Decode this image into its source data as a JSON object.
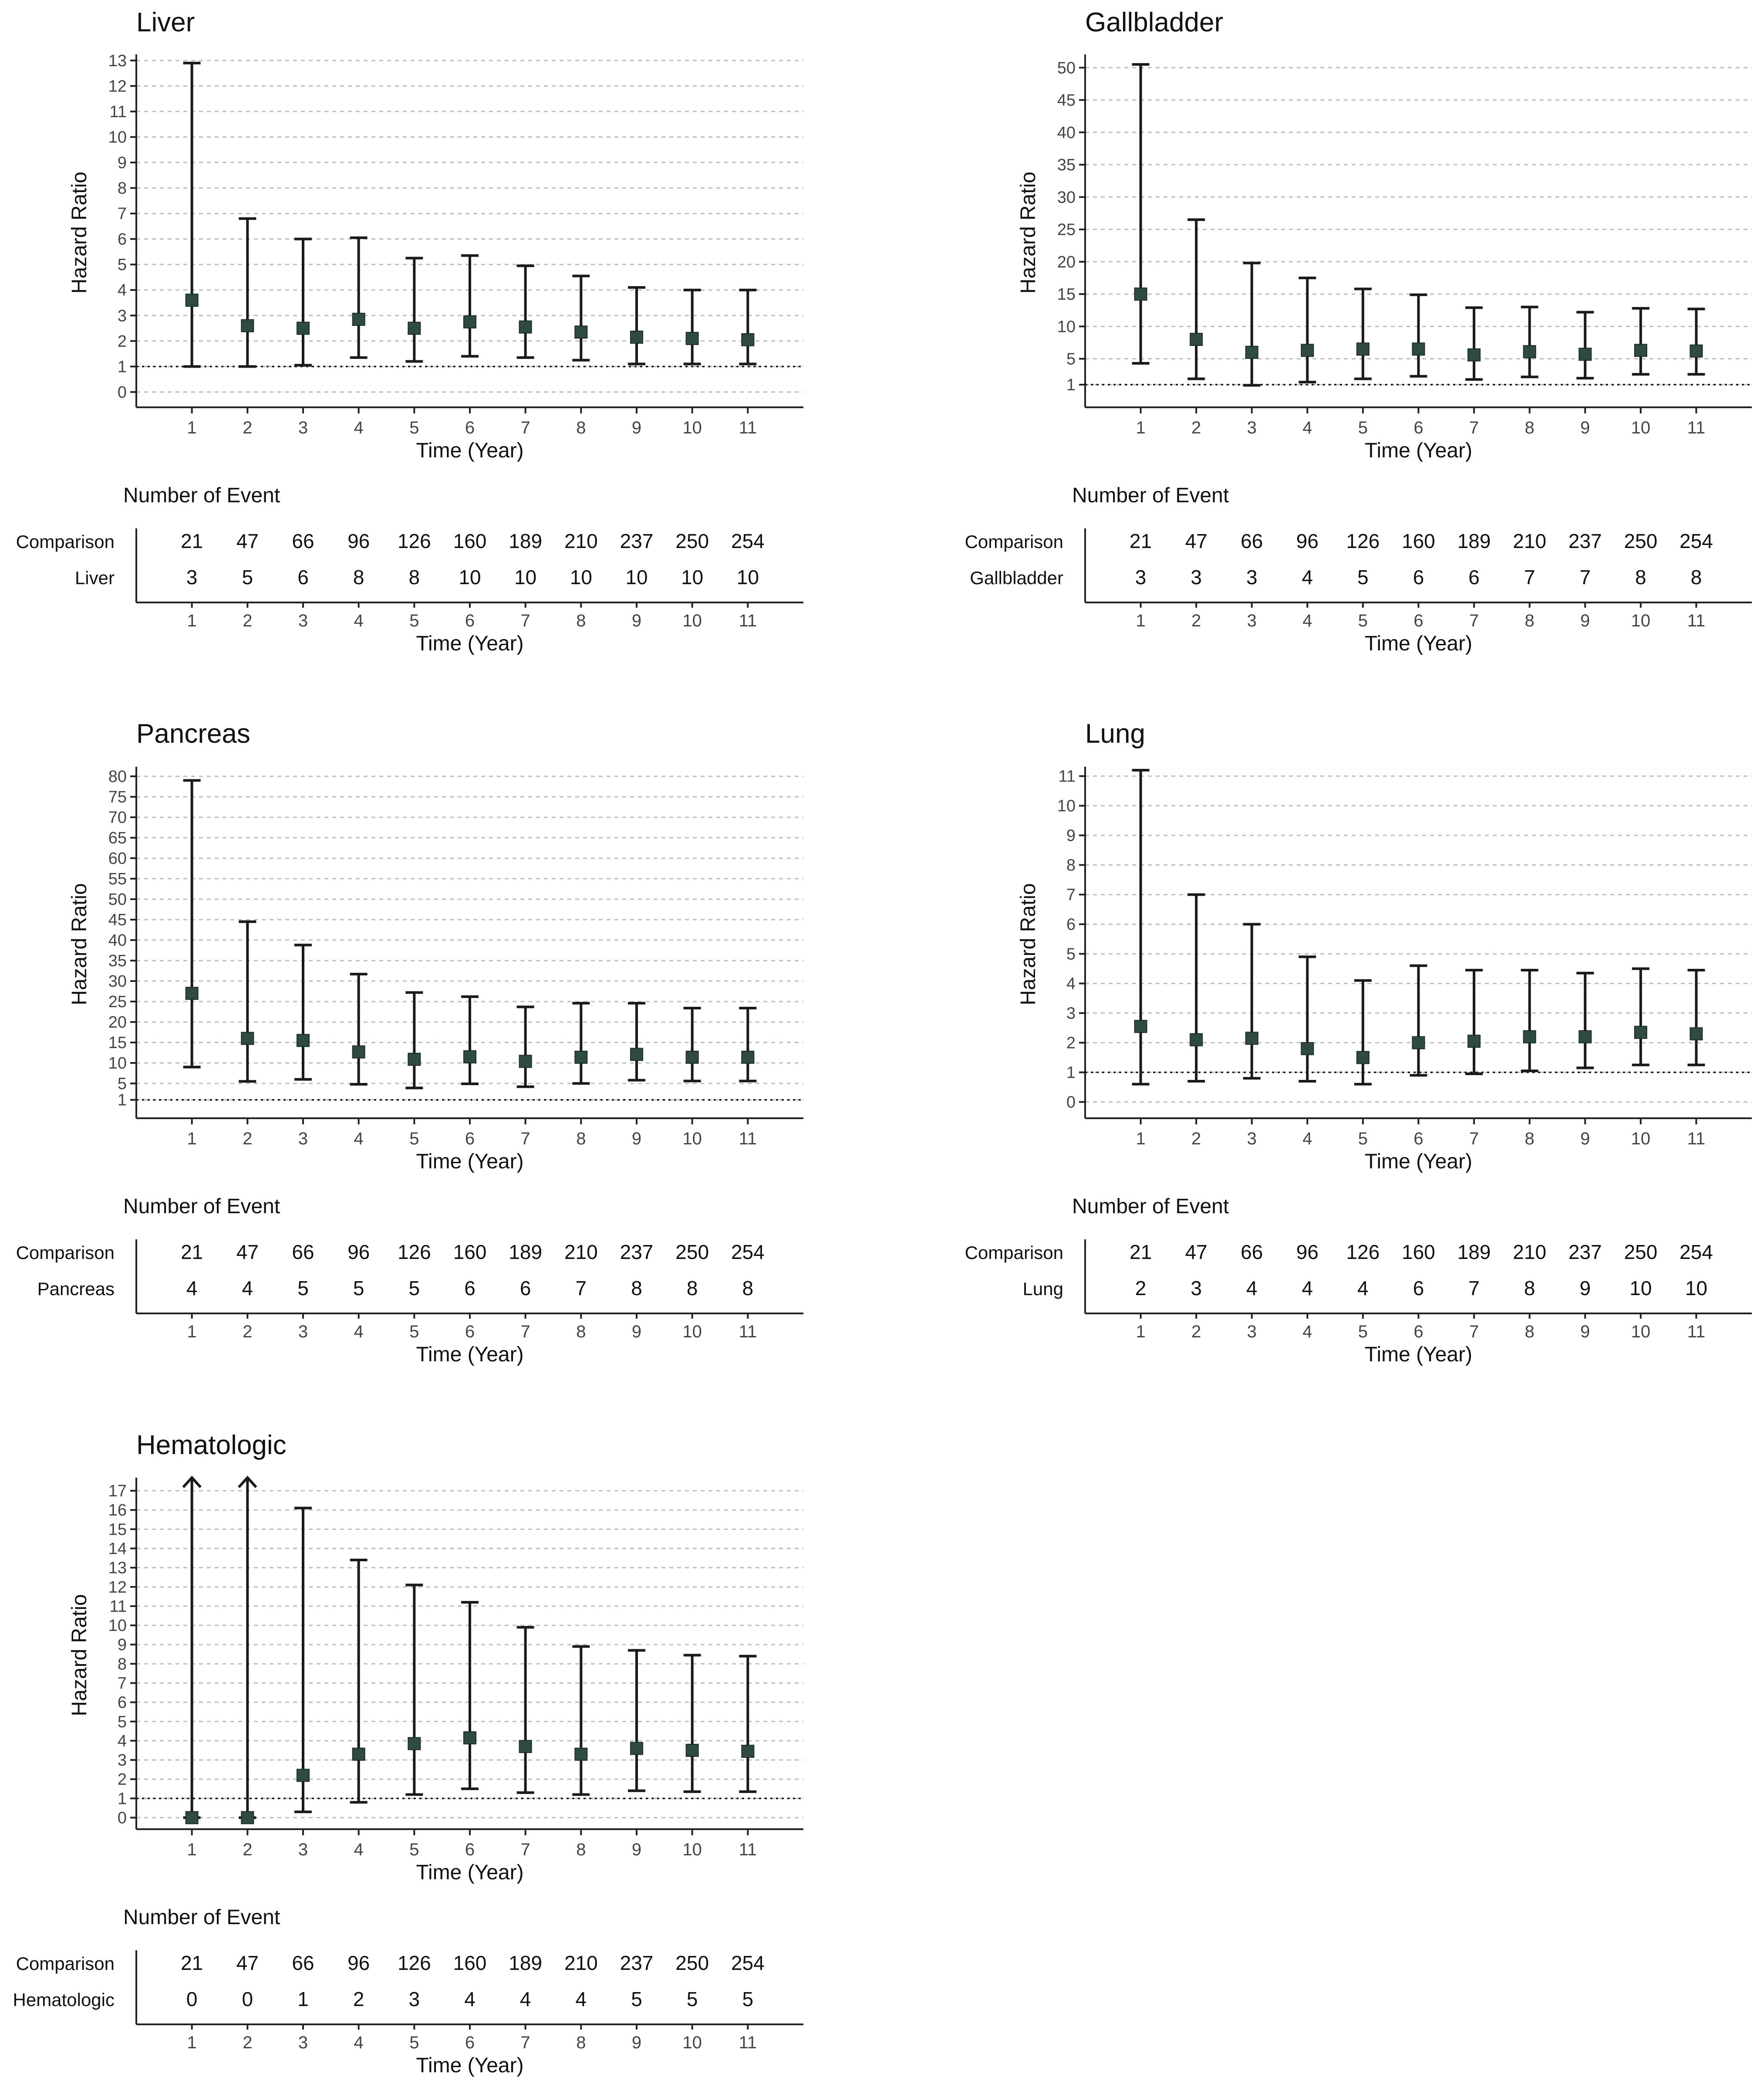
{
  "chart_data": [
    {
      "type": "errorbar",
      "title": "Liver",
      "xlabel": "Time (Year)",
      "ylabel": "Hazard Ratio",
      "yticks": [
        0,
        1,
        2,
        3,
        4,
        5,
        6,
        7,
        8,
        9,
        10,
        11,
        12,
        13
      ],
      "ylim": [
        -0.6,
        13.1
      ],
      "reference_line": 1,
      "x": [
        1,
        2,
        3,
        4,
        5,
        6,
        7,
        8,
        9,
        10,
        11
      ],
      "estimate": [
        3.6,
        2.6,
        2.5,
        2.85,
        2.5,
        2.75,
        2.55,
        2.35,
        2.15,
        2.1,
        2.05
      ],
      "lower": [
        1.0,
        1.0,
        1.05,
        1.35,
        1.2,
        1.4,
        1.35,
        1.25,
        1.1,
        1.1,
        1.1
      ],
      "upper": [
        12.9,
        6.8,
        6.0,
        6.05,
        5.25,
        5.35,
        4.95,
        4.55,
        4.1,
        4.0,
        4.0
      ],
      "table": {
        "header": "Number of Event",
        "rows": [
          {
            "label": "Comparison",
            "values": [
              "21",
              "47",
              "66",
              "96",
              "126",
              "160",
              "189",
              "210",
              "237",
              "250",
              "254"
            ]
          },
          {
            "label": "Liver",
            "values": [
              "3",
              "5",
              "6",
              "8",
              "8",
              "10",
              "10",
              "10",
              "10",
              "10",
              "10"
            ]
          }
        ],
        "xlabel": "Time (Year)"
      }
    },
    {
      "type": "errorbar",
      "title": "Gallbladder",
      "xlabel": "Time (Year)",
      "ylabel": "Hazard Ratio",
      "yticks": [
        1,
        5,
        10,
        15,
        20,
        25,
        30,
        35,
        40,
        45,
        50
      ],
      "ylim": [
        -2.5,
        51.5
      ],
      "reference_line": 1,
      "x": [
        1,
        2,
        3,
        4,
        5,
        6,
        7,
        8,
        9,
        10,
        11
      ],
      "estimate": [
        15,
        8,
        6,
        6.3,
        6.5,
        6.5,
        5.6,
        6.1,
        5.7,
        6.3,
        6.2
      ],
      "lower": [
        4.3,
        1.9,
        0.9,
        1.4,
        1.9,
        2.3,
        1.8,
        2.2,
        2.0,
        2.6,
        2.6
      ],
      "upper": [
        50.5,
        26.5,
        19.8,
        17.5,
        15.8,
        14.9,
        12.9,
        13.0,
        12.2,
        12.8,
        12.7
      ],
      "table": {
        "header": "Number of Event",
        "rows": [
          {
            "label": "Comparison",
            "values": [
              "21",
              "47",
              "66",
              "96",
              "126",
              "160",
              "189",
              "210",
              "237",
              "250",
              "254"
            ]
          },
          {
            "label": "Gallbladder",
            "values": [
              "3",
              "3",
              "3",
              "4",
              "5",
              "6",
              "6",
              "7",
              "7",
              "8",
              "8"
            ]
          }
        ],
        "xlabel": "Time (Year)"
      }
    },
    {
      "type": "errorbar",
      "title": "Pancreas",
      "xlabel": "Time (Year)",
      "ylabel": "Hazard Ratio",
      "yticks": [
        1,
        5,
        10,
        15,
        20,
        25,
        30,
        35,
        40,
        45,
        50,
        55,
        60,
        65,
        70,
        75,
        80
      ],
      "ylim": [
        -3.5,
        81.5
      ],
      "reference_line": 1,
      "x": [
        1,
        2,
        3,
        4,
        5,
        6,
        7,
        8,
        9,
        10,
        11
      ],
      "estimate": [
        27,
        16,
        15.5,
        12.7,
        10.9,
        11.5,
        10.4,
        11.4,
        12.1,
        11.4,
        11.4
      ],
      "lower": [
        9,
        5.5,
        6,
        4.8,
        3.9,
        4.9,
        4.2,
        5.0,
        5.8,
        5.6,
        5.6
      ],
      "upper": [
        79,
        44.5,
        38.8,
        31.7,
        27.2,
        26.2,
        23.7,
        24.6,
        24.6,
        23.4,
        23.4
      ],
      "table": {
        "header": "Number of Event",
        "rows": [
          {
            "label": "Comparison",
            "values": [
              "21",
              "47",
              "66",
              "96",
              "126",
              "160",
              "189",
              "210",
              "237",
              "250",
              "254"
            ]
          },
          {
            "label": "Pancreas",
            "values": [
              "4",
              "4",
              "5",
              "5",
              "5",
              "6",
              "6",
              "7",
              "8",
              "8",
              "8"
            ]
          }
        ],
        "xlabel": "Time (Year)"
      }
    },
    {
      "type": "errorbar",
      "title": "Lung",
      "xlabel": "Time (Year)",
      "ylabel": "Hazard Ratio",
      "yticks": [
        0,
        1,
        2,
        3,
        4,
        5,
        6,
        7,
        8,
        9,
        10,
        11
      ],
      "ylim": [
        -0.55,
        11.2
      ],
      "reference_line": 1,
      "x": [
        1,
        2,
        3,
        4,
        5,
        6,
        7,
        8,
        9,
        10,
        11
      ],
      "estimate": [
        2.55,
        2.1,
        2.15,
        1.8,
        1.5,
        2.0,
        2.05,
        2.2,
        2.2,
        2.35,
        2.3
      ],
      "lower": [
        0.6,
        0.7,
        0.8,
        0.7,
        0.6,
        0.9,
        0.95,
        1.05,
        1.15,
        1.25,
        1.25
      ],
      "upper": [
        11.2,
        7.0,
        6.0,
        4.9,
        4.1,
        4.6,
        4.45,
        4.45,
        4.35,
        4.5,
        4.45
      ],
      "table": {
        "header": "Number of Event",
        "rows": [
          {
            "label": "Comparison",
            "values": [
              "21",
              "47",
              "66",
              "96",
              "126",
              "160",
              "189",
              "210",
              "237",
              "250",
              "254"
            ]
          },
          {
            "label": "Lung",
            "values": [
              "2",
              "3",
              "4",
              "4",
              "4",
              "6",
              "7",
              "8",
              "9",
              "10",
              "10"
            ]
          }
        ],
        "xlabel": "Time (Year)"
      }
    },
    {
      "type": "errorbar",
      "title": "Hematologic",
      "xlabel": "Time (Year)",
      "ylabel": "Hazard Ratio",
      "yticks": [
        0,
        1,
        2,
        3,
        4,
        5,
        6,
        7,
        8,
        9,
        10,
        11,
        12,
        13,
        14,
        15,
        16,
        17
      ],
      "ylim": [
        -0.6,
        17.5
      ],
      "reference_line": 1,
      "x": [
        1,
        2,
        3,
        4,
        5,
        6,
        7,
        8,
        9,
        10,
        11
      ],
      "estimate": [
        0,
        0,
        2.2,
        3.3,
        3.85,
        4.15,
        3.7,
        3.3,
        3.6,
        3.5,
        3.45
      ],
      "lower": [
        0,
        0,
        0.3,
        0.8,
        1.2,
        1.5,
        1.3,
        1.2,
        1.4,
        1.35,
        1.35
      ],
      "upper": [
        17.5,
        17.5,
        16.1,
        13.4,
        12.1,
        11.2,
        9.9,
        8.9,
        8.7,
        8.45,
        8.4
      ],
      "upper_truncated": [
        true,
        true,
        false,
        false,
        false,
        false,
        false,
        false,
        false,
        false,
        false
      ],
      "table": {
        "header": "Number of Event",
        "rows": [
          {
            "label": "Comparison",
            "values": [
              "21",
              "47",
              "66",
              "96",
              "126",
              "160",
              "189",
              "210",
              "237",
              "250",
              "254"
            ]
          },
          {
            "label": "Hematologic",
            "values": [
              "0",
              "0",
              "1",
              "2",
              "3",
              "4",
              "4",
              "4",
              "5",
              "5",
              "5"
            ]
          }
        ],
        "xlabel": "Time (Year)"
      }
    }
  ]
}
